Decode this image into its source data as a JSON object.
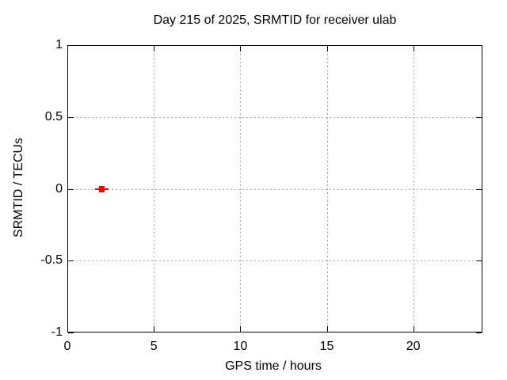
{
  "chart_data": {
    "type": "scatter",
    "title": "Day 215 of 2025, SRMTID for receiver ulab",
    "xlabel": "GPS time / hours",
    "ylabel": "SRMTID / TECUs",
    "xlim": [
      0,
      24
    ],
    "ylim": [
      -1,
      1
    ],
    "xticks": [
      0,
      5,
      10,
      15,
      20
    ],
    "yticks": [
      -1,
      -0.5,
      0,
      0.5,
      1
    ],
    "grid": true,
    "legend": false,
    "series": [
      {
        "name": "SRMTID",
        "marker": "filled-square",
        "errorbars": "x",
        "color": "#ff0000",
        "points": [
          {
            "x": 2.0,
            "y": 0.0,
            "xerr": 0.4
          }
        ]
      }
    ]
  },
  "colors": {
    "background": "#ffffff",
    "axis": "#000000",
    "grid": "#a6a6a6",
    "marker": "#ff0000",
    "text": "#000000"
  }
}
